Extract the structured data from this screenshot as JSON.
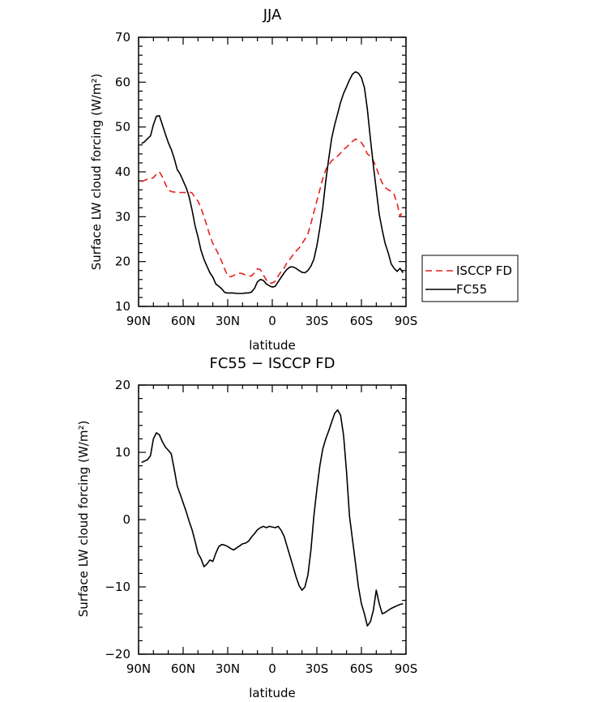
{
  "chart_data": [
    {
      "type": "line",
      "title": "JJA",
      "xlabel": "latitude",
      "ylabel": "Surface LW cloud forcing (W/m²)",
      "xlim": [
        90,
        -90
      ],
      "ylim": [
        10,
        70
      ],
      "x_ticks": [
        90,
        60,
        30,
        0,
        -30,
        -60,
        -90
      ],
      "x_tick_labels": [
        "90N",
        "60N",
        "30N",
        "0",
        "30S",
        "60S",
        "90S"
      ],
      "y_ticks": [
        10,
        20,
        30,
        40,
        50,
        60,
        70
      ],
      "y_tick_labels": [
        "10",
        "20",
        "30",
        "40",
        "50",
        "60",
        "70"
      ],
      "legend_position": "right-middle",
      "series": [
        {
          "name": "ISCCP FD",
          "color": "#e8201e",
          "dash": "dashed",
          "x": [
            88,
            86,
            84,
            82,
            80,
            78,
            76,
            74,
            72,
            70,
            68,
            66,
            64,
            62,
            60,
            58,
            56,
            54,
            52,
            50,
            48,
            46,
            44,
            42,
            40,
            38,
            36,
            34,
            32,
            30,
            28,
            26,
            24,
            22,
            20,
            18,
            16,
            14,
            12,
            10,
            8,
            6,
            4,
            2,
            0,
            -2,
            -4,
            -6,
            -8,
            -10,
            -12,
            -14,
            -16,
            -18,
            -20,
            -22,
            -24,
            -26,
            -28,
            -30,
            -32,
            -34,
            -36,
            -38,
            -40,
            -42,
            -44,
            -46,
            -48,
            -50,
            -52,
            -54,
            -56,
            -58,
            -60,
            -62,
            -64,
            -66,
            -68,
            -70,
            -72,
            -74,
            -76,
            -78,
            -80,
            -82,
            -84,
            -86,
            -88
          ],
          "y": [
            37.8,
            38.1,
            38.4,
            38.5,
            38.7,
            39.5,
            40.0,
            38.9,
            37.3,
            36.0,
            35.6,
            35.5,
            35.4,
            35.4,
            35.4,
            35.4,
            35.5,
            35.3,
            34.2,
            33.5,
            32.0,
            30.0,
            28.0,
            25.8,
            24.0,
            22.8,
            21.5,
            20.0,
            18.3,
            16.8,
            16.6,
            16.9,
            17.2,
            17.4,
            17.3,
            17.0,
            16.8,
            16.8,
            17.5,
            18.4,
            18.2,
            17.0,
            15.9,
            15.2,
            15.2,
            15.6,
            16.8,
            17.8,
            18.6,
            19.8,
            20.6,
            21.5,
            22.3,
            23.0,
            24.0,
            25.0,
            26.2,
            28.5,
            31.0,
            33.5,
            36.0,
            38.5,
            40.5,
            41.5,
            42.5,
            43.0,
            43.5,
            44.2,
            45.0,
            45.5,
            46.2,
            46.8,
            47.3,
            47.0,
            46.5,
            45.5,
            44.0,
            43.5,
            42.5,
            41.0,
            39.0,
            37.5,
            36.5,
            36.0,
            35.7,
            35.0,
            33.0,
            30.0,
            31.5
          ]
        },
        {
          "name": "FC55",
          "color": "#000000",
          "dash": "solid",
          "x": [
            88,
            86,
            84,
            82,
            80,
            78,
            76,
            74,
            72,
            70,
            68,
            66,
            64,
            62,
            60,
            58,
            56,
            54,
            52,
            50,
            48,
            46,
            44,
            42,
            40,
            38,
            36,
            34,
            32,
            30,
            28,
            26,
            24,
            22,
            20,
            18,
            16,
            14,
            12,
            10,
            8,
            6,
            4,
            2,
            0,
            -2,
            -4,
            -6,
            -8,
            -10,
            -12,
            -14,
            -16,
            -18,
            -20,
            -22,
            -24,
            -26,
            -28,
            -30,
            -32,
            -34,
            -36,
            -38,
            -40,
            -42,
            -44,
            -46,
            -48,
            -50,
            -52,
            -54,
            -56,
            -58,
            -60,
            -62,
            -64,
            -66,
            -68,
            -70,
            -72,
            -74,
            -76,
            -78,
            -80,
            -82,
            -84,
            -86,
            -88
          ],
          "y": [
            46.3,
            46.7,
            47.4,
            48.0,
            50.5,
            52.4,
            52.5,
            50.5,
            48.5,
            46.5,
            45.0,
            43.0,
            40.5,
            39.5,
            38.0,
            36.5,
            34.5,
            31.5,
            28.0,
            25.5,
            22.5,
            20.5,
            19.0,
            17.5,
            16.5,
            15.0,
            14.5,
            13.9,
            13.1,
            13.0,
            13.0,
            13.0,
            12.9,
            12.9,
            12.9,
            13.0,
            13.0,
            13.2,
            14.0,
            15.5,
            16.0,
            15.8,
            15.0,
            14.6,
            14.3,
            14.5,
            15.5,
            16.5,
            17.5,
            18.3,
            18.8,
            18.8,
            18.5,
            18.0,
            17.6,
            17.5,
            18.0,
            19.0,
            20.5,
            23.5,
            27.5,
            32.0,
            38.0,
            43.0,
            47.5,
            50.5,
            53.0,
            55.5,
            57.5,
            59.0,
            60.5,
            61.8,
            62.3,
            62.0,
            61.0,
            58.8,
            54.0,
            47.5,
            41.5,
            36.0,
            30.5,
            27.0,
            24.0,
            22.0,
            19.5,
            18.5,
            17.8,
            18.5,
            17.5
          ]
        }
      ]
    },
    {
      "type": "line",
      "title": "FC55 − ISCCP FD",
      "xlabel": "latitude",
      "ylabel": "Surface LW cloud forcing (W/m²)",
      "xlim": [
        90,
        -90
      ],
      "ylim": [
        -20,
        20
      ],
      "x_ticks": [
        90,
        60,
        30,
        0,
        -30,
        -60,
        -90
      ],
      "x_tick_labels": [
        "90N",
        "60N",
        "30N",
        "0",
        "30S",
        "60S",
        "90S"
      ],
      "y_ticks": [
        -20,
        -10,
        0,
        10,
        20
      ],
      "y_tick_labels": [
        "−20",
        "−10",
        "0",
        "10",
        "20"
      ],
      "series": [
        {
          "color": "#000000",
          "dash": "solid",
          "x": [
            88,
            86,
            84,
            82,
            80,
            78,
            76,
            74,
            72,
            70,
            68,
            66,
            64,
            62,
            60,
            58,
            56,
            54,
            52,
            50,
            48,
            46,
            44,
            42,
            40,
            38,
            36,
            34,
            32,
            30,
            28,
            26,
            24,
            22,
            20,
            18,
            16,
            14,
            12,
            10,
            8,
            6,
            4,
            2,
            0,
            -2,
            -4,
            -6,
            -8,
            -10,
            -12,
            -14,
            -16,
            -18,
            -20,
            -22,
            -24,
            -26,
            -28,
            -30,
            -32,
            -34,
            -36,
            -38,
            -40,
            -42,
            -44,
            -46,
            -48,
            -50,
            -52,
            -54,
            -56,
            -58,
            -60,
            -62,
            -64,
            -66,
            -68,
            -70,
            -72,
            -74,
            -76,
            -78,
            -80,
            -82,
            -84,
            -86,
            -88
          ],
          "y": [
            8.5,
            8.7,
            8.9,
            9.5,
            12.0,
            12.9,
            12.6,
            11.6,
            10.8,
            10.3,
            9.8,
            7.5,
            5.0,
            3.8,
            2.5,
            1.2,
            -0.2,
            -1.5,
            -3.2,
            -5.0,
            -5.8,
            -7.0,
            -6.6,
            -6.0,
            -6.2,
            -5.0,
            -4.0,
            -3.7,
            -3.8,
            -4.0,
            -4.3,
            -4.5,
            -4.2,
            -3.9,
            -3.6,
            -3.5,
            -3.2,
            -2.6,
            -2.1,
            -1.5,
            -1.2,
            -1.0,
            -1.2,
            -1.0,
            -1.1,
            -1.2,
            -1.0,
            -1.6,
            -2.5,
            -4.0,
            -5.5,
            -7.0,
            -8.5,
            -9.8,
            -10.5,
            -10.0,
            -8.2,
            -4.5,
            0.5,
            4.5,
            8.0,
            10.5,
            12.0,
            13.2,
            14.5,
            15.8,
            16.3,
            15.5,
            12.5,
            7.0,
            0.5,
            -3.0,
            -6.5,
            -10.0,
            -12.5,
            -14.0,
            -15.8,
            -15.2,
            -13.5,
            -10.5,
            -12.5,
            -14.0,
            -13.8,
            -13.5,
            -13.2,
            -13.0,
            -12.8,
            -12.6,
            -12.5
          ]
        }
      ]
    }
  ]
}
